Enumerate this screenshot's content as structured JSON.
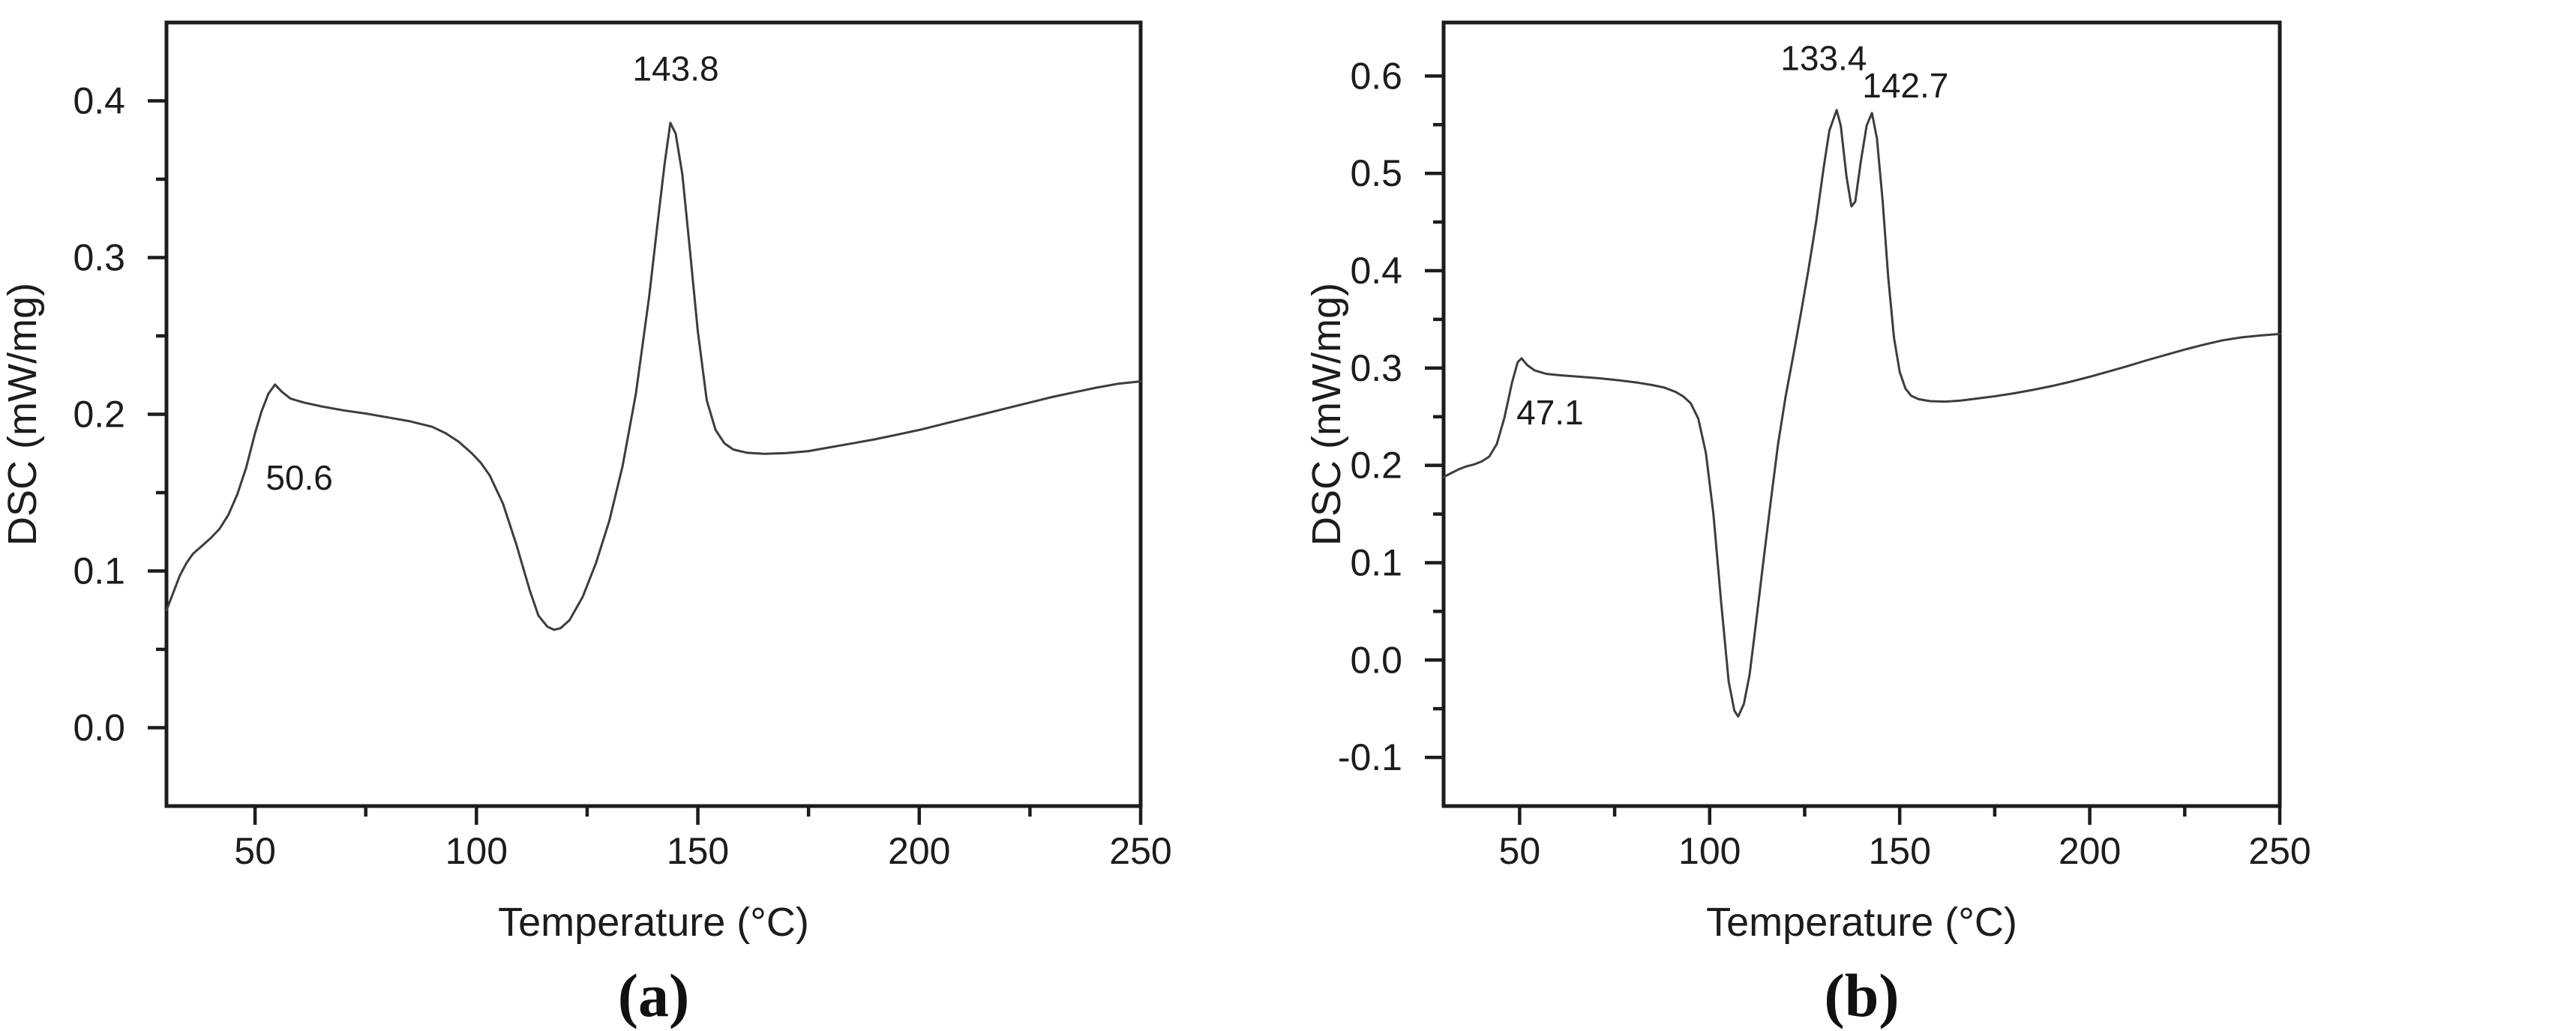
{
  "figure": {
    "background": "#ffffff",
    "text_color": "#1c1c1c",
    "axis_color": "#1c1c1c",
    "curve_color": "#3d3d3d"
  },
  "chart_data": [
    {
      "id": "a",
      "type": "line",
      "caption": "(a)",
      "xlabel": "Temperature (°C)",
      "ylabel": "DSC (mW/mg)",
      "xlim": [
        30,
        250
      ],
      "ylim": [
        -0.05,
        0.45
      ],
      "x_ticks": {
        "major": [
          50,
          100,
          150,
          200,
          250
        ],
        "labels": [
          "50",
          "100",
          "150",
          "200",
          "250"
        ],
        "minor": [
          75,
          125,
          175,
          225
        ]
      },
      "y_ticks": {
        "major": [
          0.0,
          0.1,
          0.2,
          0.3,
          0.4
        ],
        "labels": [
          "0.0",
          "0.1",
          "0.2",
          "0.3",
          "0.4"
        ],
        "minor": [
          0.05,
          0.15,
          0.25,
          0.35
        ]
      },
      "grid": false,
      "legend": null,
      "annotations": [
        {
          "text": "50.6",
          "x": 60,
          "y": 0.152
        },
        {
          "text": "143.8",
          "x": 145,
          "y": 0.413
        }
      ],
      "points": [
        [
          30,
          0.075
        ],
        [
          31.5,
          0.086
        ],
        [
          33,
          0.097
        ],
        [
          34.5,
          0.105
        ],
        [
          36,
          0.111
        ],
        [
          38,
          0.116
        ],
        [
          40,
          0.121
        ],
        [
          42,
          0.127
        ],
        [
          44,
          0.136
        ],
        [
          46,
          0.149
        ],
        [
          48,
          0.166
        ],
        [
          50,
          0.188
        ],
        [
          51.5,
          0.202
        ],
        [
          53,
          0.213
        ],
        [
          54.5,
          0.219
        ],
        [
          56,
          0.2145
        ],
        [
          58,
          0.21
        ],
        [
          61,
          0.2075
        ],
        [
          65,
          0.205
        ],
        [
          70,
          0.2025
        ],
        [
          75,
          0.2005
        ],
        [
          80,
          0.198
        ],
        [
          85,
          0.1955
        ],
        [
          90,
          0.192
        ],
        [
          93,
          0.188
        ],
        [
          96,
          0.1825
        ],
        [
          99,
          0.175
        ],
        [
          101,
          0.169
        ],
        [
          103,
          0.161
        ],
        [
          106,
          0.143
        ],
        [
          109,
          0.117
        ],
        [
          112,
          0.088
        ],
        [
          114,
          0.0715
        ],
        [
          116,
          0.0645
        ],
        [
          117.5,
          0.0625
        ],
        [
          119,
          0.0635
        ],
        [
          121,
          0.0685
        ],
        [
          124,
          0.0835
        ],
        [
          127,
          0.105
        ],
        [
          130,
          0.132
        ],
        [
          133,
          0.167
        ],
        [
          136,
          0.213
        ],
        [
          139,
          0.275
        ],
        [
          141,
          0.324
        ],
        [
          142.5,
          0.36
        ],
        [
          143.8,
          0.386
        ],
        [
          145,
          0.379
        ],
        [
          146.5,
          0.353
        ],
        [
          148,
          0.311
        ],
        [
          150,
          0.253
        ],
        [
          152,
          0.209
        ],
        [
          154,
          0.19
        ],
        [
          156,
          0.1815
        ],
        [
          158,
          0.1775
        ],
        [
          161,
          0.1755
        ],
        [
          165,
          0.1748
        ],
        [
          170,
          0.1752
        ],
        [
          175,
          0.1765
        ],
        [
          180,
          0.179
        ],
        [
          185,
          0.1815
        ],
        [
          190,
          0.184
        ],
        [
          195,
          0.187
        ],
        [
          200,
          0.19
        ],
        [
          205,
          0.1935
        ],
        [
          210,
          0.197
        ],
        [
          215,
          0.2005
        ],
        [
          220,
          0.204
        ],
        [
          225,
          0.2075
        ],
        [
          230,
          0.211
        ],
        [
          235,
          0.214
        ],
        [
          240,
          0.217
        ],
        [
          245,
          0.2195
        ],
        [
          250,
          0.221
        ]
      ]
    },
    {
      "id": "b",
      "type": "line",
      "caption": "(b)",
      "xlabel": "Temperature (°C)",
      "ylabel": "DSC (mW/mg)",
      "xlim": [
        30,
        250
      ],
      "ylim": [
        -0.15,
        0.655
      ],
      "x_ticks": {
        "major": [
          50,
          100,
          150,
          200,
          250
        ],
        "labels": [
          "50",
          "100",
          "150",
          "200",
          "250"
        ],
        "minor": [
          75,
          125,
          175,
          225
        ]
      },
      "y_ticks": {
        "major": [
          -0.1,
          0.0,
          0.1,
          0.2,
          0.3,
          0.4,
          0.5,
          0.6
        ],
        "labels": [
          "-0.1",
          "0.0",
          "0.1",
          "0.2",
          "0.3",
          "0.4",
          "0.5",
          "0.6"
        ],
        "minor": [
          -0.05,
          0.05,
          0.15,
          0.25,
          0.35,
          0.45,
          0.55
        ]
      },
      "grid": false,
      "legend": null,
      "annotations": [
        {
          "text": "47.1",
          "x": 58,
          "y": 0.242
        },
        {
          "text": "133.4",
          "x": 130,
          "y": 0.606
        },
        {
          "text": "142.7",
          "x": 151.5,
          "y": 0.578
        }
      ],
      "points": [
        [
          30,
          0.188
        ],
        [
          32,
          0.192
        ],
        [
          34,
          0.196
        ],
        [
          36,
          0.199
        ],
        [
          38,
          0.201
        ],
        [
          40,
          0.204
        ],
        [
          42,
          0.209
        ],
        [
          44,
          0.222
        ],
        [
          46,
          0.249
        ],
        [
          48,
          0.285
        ],
        [
          49.5,
          0.306
        ],
        [
          50.5,
          0.31
        ],
        [
          52,
          0.303
        ],
        [
          54,
          0.2975
        ],
        [
          57,
          0.294
        ],
        [
          61,
          0.2925
        ],
        [
          66,
          0.291
        ],
        [
          71,
          0.2895
        ],
        [
          76,
          0.2875
        ],
        [
          81,
          0.285
        ],
        [
          85,
          0.2825
        ],
        [
          88,
          0.28
        ],
        [
          91,
          0.2755
        ],
        [
          93,
          0.271
        ],
        [
          95,
          0.264
        ],
        [
          97,
          0.248
        ],
        [
          99,
          0.213
        ],
        [
          101,
          0.15
        ],
        [
          103,
          0.06
        ],
        [
          105,
          -0.022
        ],
        [
          106.5,
          -0.052
        ],
        [
          107.5,
          -0.058
        ],
        [
          109,
          -0.045
        ],
        [
          110.5,
          -0.015
        ],
        [
          112,
          0.032
        ],
        [
          114,
          0.097
        ],
        [
          116,
          0.161
        ],
        [
          118,
          0.222
        ],
        [
          120,
          0.271
        ],
        [
          122,
          0.313
        ],
        [
          124,
          0.356
        ],
        [
          126,
          0.401
        ],
        [
          128,
          0.45
        ],
        [
          130,
          0.506
        ],
        [
          131.5,
          0.544
        ],
        [
          133.4,
          0.565
        ],
        [
          134.5,
          0.549
        ],
        [
          136,
          0.497
        ],
        [
          137.3,
          0.466
        ],
        [
          138.3,
          0.471
        ],
        [
          139.8,
          0.513
        ],
        [
          141.3,
          0.549
        ],
        [
          142.7,
          0.562
        ],
        [
          144,
          0.536
        ],
        [
          145.5,
          0.472
        ],
        [
          147,
          0.392
        ],
        [
          148.5,
          0.331
        ],
        [
          150,
          0.296
        ],
        [
          151.5,
          0.279
        ],
        [
          153,
          0.2715
        ],
        [
          155,
          0.268
        ],
        [
          158,
          0.266
        ],
        [
          162,
          0.2655
        ],
        [
          166,
          0.2665
        ],
        [
          170,
          0.2685
        ],
        [
          175,
          0.271
        ],
        [
          180,
          0.274
        ],
        [
          185,
          0.2775
        ],
        [
          190,
          0.2815
        ],
        [
          195,
          0.286
        ],
        [
          200,
          0.291
        ],
        [
          205,
          0.2965
        ],
        [
          210,
          0.302
        ],
        [
          215,
          0.308
        ],
        [
          220,
          0.3135
        ],
        [
          225,
          0.319
        ],
        [
          230,
          0.324
        ],
        [
          235,
          0.3285
        ],
        [
          240,
          0.3315
        ],
        [
          245,
          0.3335
        ],
        [
          250,
          0.335
        ]
      ]
    }
  ]
}
